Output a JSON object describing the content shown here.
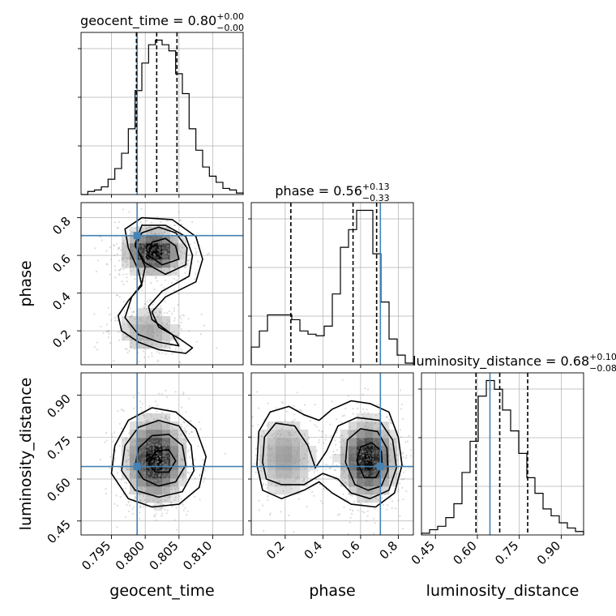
{
  "chart_data": {
    "type": "corner",
    "parameters": [
      "geocent_time",
      "phase",
      "luminosity_distance"
    ],
    "truths": {
      "geocent_time": 0.7988,
      "phase": 0.705,
      "luminosity_distance": 0.645
    },
    "colors": {
      "truth": "#4682b4",
      "hist": "#000000",
      "grid": "#b0b0b0",
      "scatter": "#9a9a9a"
    },
    "grid": true,
    "diagonal": [
      {
        "param": "geocent_time",
        "title_label": "geocent_time = 0.80",
        "title_sup": "+0.00",
        "title_sub": "−0.00",
        "range": [
          0.7905,
          0.8145
        ],
        "quantiles": [
          0.7987,
          0.8017,
          0.8047
        ],
        "counts": [
          0,
          2,
          3,
          5,
          10,
          17,
          27,
          43,
          68,
          86,
          98,
          101,
          98,
          94,
          79,
          66,
          43,
          29,
          18,
          12,
          8,
          4,
          3,
          1
        ]
      },
      {
        "param": "phase",
        "title_label": "phase = 0.56",
        "title_sup": "+0.13",
        "title_sub": "−0.33",
        "range": [
          0.02,
          0.88
        ],
        "quantiles": [
          0.23,
          0.56,
          0.685
        ],
        "counts": [
          11,
          21,
          31,
          31,
          31,
          28,
          21,
          19,
          18,
          24,
          44,
          73,
          84,
          96,
          96,
          69,
          39,
          16,
          6,
          1
        ]
      },
      {
        "param": "luminosity_distance",
        "title_label": "luminosity_distance = 0.68",
        "title_sup": "+0.10",
        "title_sub": "−0.08",
        "range": [
          0.4,
          0.98
        ],
        "quantiles": [
          0.595,
          0.68,
          0.78
        ],
        "counts": [
          1,
          3,
          5,
          10,
          18,
          36,
          54,
          80,
          89,
          84,
          72,
          60,
          47,
          33,
          24,
          15,
          11,
          7,
          4,
          2
        ]
      }
    ],
    "axes": {
      "geocent_time": {
        "label": "geocent_time",
        "ticks": [
          0.795,
          0.8,
          0.805,
          0.81
        ],
        "tick_labels": [
          "0.795",
          "0.800",
          "0.805",
          "0.810"
        ]
      },
      "phase": {
        "label": "phase",
        "ticks": [
          0.2,
          0.4,
          0.6,
          0.8
        ],
        "tick_labels": [
          "0.2",
          "0.4",
          "0.6",
          "0.8"
        ]
      },
      "luminosity_distance": {
        "label": "luminosity_distance",
        "ticks": [
          0.45,
          0.6,
          0.75,
          0.9
        ],
        "tick_labels": [
          "0.45",
          "0.60",
          "0.75",
          "0.90"
        ]
      }
    },
    "pairs": [
      {
        "x": "geocent_time",
        "y": "phase",
        "modes": [
          {
            "cx": 0.8012,
            "cy": 0.62,
            "sx": 0.0022,
            "sy": 0.06,
            "w": 0.72
          },
          {
            "cx": 0.8005,
            "cy": 0.2,
            "sx": 0.0026,
            "sy": 0.07,
            "w": 0.28
          }
        ],
        "contours": [
          [
            [
              0.796,
              0.28
            ],
            [
              0.7965,
              0.2
            ],
            [
              0.799,
              0.14
            ],
            [
              0.802,
              0.1
            ],
            [
              0.806,
              0.08
            ],
            [
              0.807,
              0.11
            ],
            [
              0.805,
              0.16
            ],
            [
              0.802,
              0.22
            ],
            [
              0.801,
              0.3
            ],
            [
              0.803,
              0.38
            ],
            [
              0.8075,
              0.46
            ],
            [
              0.8085,
              0.58
            ],
            [
              0.8075,
              0.7
            ],
            [
              0.804,
              0.79
            ],
            [
              0.7995,
              0.8
            ],
            [
              0.797,
              0.74
            ],
            [
              0.7975,
              0.64
            ],
            [
              0.799,
              0.52
            ],
            [
              0.7995,
              0.44
            ],
            [
              0.7975,
              0.36
            ]
          ],
          [
            [
              0.797,
              0.27
            ],
            [
              0.799,
              0.18
            ],
            [
              0.802,
              0.14
            ],
            [
              0.805,
              0.12
            ],
            [
              0.804,
              0.18
            ],
            [
              0.801,
              0.26
            ],
            [
              0.8005,
              0.33
            ],
            [
              0.8025,
              0.41
            ],
            [
              0.8065,
              0.49
            ],
            [
              0.807,
              0.6
            ],
            [
              0.806,
              0.7
            ],
            [
              0.803,
              0.76
            ],
            [
              0.7995,
              0.76
            ],
            [
              0.7985,
              0.66
            ],
            [
              0.8,
              0.54
            ],
            [
              0.7995,
              0.45
            ],
            [
              0.798,
              0.38
            ]
          ],
          [
            [
              0.7995,
              0.72
            ],
            [
              0.7985,
              0.65
            ],
            [
              0.8,
              0.56
            ],
            [
              0.803,
              0.5
            ],
            [
              0.806,
              0.55
            ],
            [
              0.8062,
              0.64
            ],
            [
              0.8045,
              0.72
            ],
            [
              0.802,
              0.75
            ]
          ],
          [
            [
              0.801,
              0.67
            ],
            [
              0.8005,
              0.6
            ],
            [
              0.8025,
              0.55
            ],
            [
              0.805,
              0.58
            ],
            [
              0.8045,
              0.65
            ],
            [
              0.803,
              0.69
            ]
          ]
        ]
      },
      {
        "x": "geocent_time",
        "y": "luminosity_distance",
        "modes": [
          {
            "cx": 0.8015,
            "cy": 0.67,
            "sx": 0.0022,
            "sy": 0.075,
            "w": 1
          }
        ],
        "contours": [
          [
            [
              0.795,
              0.62
            ],
            [
              0.7955,
              0.72
            ],
            [
              0.7975,
              0.81
            ],
            [
              0.801,
              0.855
            ],
            [
              0.8045,
              0.84
            ],
            [
              0.8075,
              0.78
            ],
            [
              0.809,
              0.68
            ],
            [
              0.808,
              0.57
            ],
            [
              0.805,
              0.51
            ],
            [
              0.801,
              0.5
            ],
            [
              0.7975,
              0.53
            ]
          ],
          [
            [
              0.7965,
              0.63
            ],
            [
              0.797,
              0.72
            ],
            [
              0.799,
              0.785
            ],
            [
              0.802,
              0.81
            ],
            [
              0.805,
              0.79
            ],
            [
              0.8068,
              0.72
            ],
            [
              0.8072,
              0.63
            ],
            [
              0.8055,
              0.555
            ],
            [
              0.802,
              0.535
            ],
            [
              0.7985,
              0.56
            ]
          ],
          [
            [
              0.7985,
              0.645
            ],
            [
              0.799,
              0.71
            ],
            [
              0.801,
              0.755
            ],
            [
              0.8035,
              0.76
            ],
            [
              0.8055,
              0.72
            ],
            [
              0.806,
              0.65
            ],
            [
              0.8045,
              0.59
            ],
            [
              0.802,
              0.575
            ],
            [
              0.7997,
              0.6
            ]
          ],
          [
            [
              0.8005,
              0.655
            ],
            [
              0.8015,
              0.7
            ],
            [
              0.8035,
              0.705
            ],
            [
              0.8045,
              0.665
            ],
            [
              0.8035,
              0.625
            ],
            [
              0.8015,
              0.625
            ]
          ]
        ]
      },
      {
        "x": "phase",
        "y": "luminosity_distance",
        "modes": [
          {
            "cx": 0.64,
            "cy": 0.67,
            "sx": 0.075,
            "sy": 0.07,
            "w": 0.68
          },
          {
            "cx": 0.2,
            "cy": 0.68,
            "sx": 0.09,
            "sy": 0.08,
            "w": 0.32
          }
        ],
        "contours": [
          [
            [
              0.05,
              0.65
            ],
            [
              0.06,
              0.77
            ],
            [
              0.12,
              0.84
            ],
            [
              0.22,
              0.86
            ],
            [
              0.3,
              0.83
            ],
            [
              0.38,
              0.81
            ],
            [
              0.45,
              0.85
            ],
            [
              0.55,
              0.88
            ],
            [
              0.65,
              0.87
            ],
            [
              0.75,
              0.84
            ],
            [
              0.8,
              0.75
            ],
            [
              0.82,
              0.65
            ],
            [
              0.78,
              0.55
            ],
            [
              0.68,
              0.5
            ],
            [
              0.55,
              0.51
            ],
            [
              0.45,
              0.55
            ],
            [
              0.38,
              0.59
            ],
            [
              0.3,
              0.56
            ],
            [
              0.18,
              0.53
            ],
            [
              0.08,
              0.56
            ]
          ],
          [
            [
              0.08,
              0.66
            ],
            [
              0.09,
              0.75
            ],
            [
              0.15,
              0.8
            ],
            [
              0.25,
              0.79
            ],
            [
              0.32,
              0.72
            ],
            [
              0.36,
              0.64
            ],
            [
              0.42,
              0.7
            ],
            [
              0.48,
              0.79
            ],
            [
              0.58,
              0.82
            ],
            [
              0.7,
              0.81
            ],
            [
              0.77,
              0.74
            ],
            [
              0.79,
              0.64
            ],
            [
              0.75,
              0.56
            ],
            [
              0.65,
              0.53
            ],
            [
              0.55,
              0.55
            ],
            [
              0.48,
              0.6
            ],
            [
              0.4,
              0.62
            ],
            [
              0.3,
              0.58
            ],
            [
              0.18,
              0.58
            ],
            [
              0.1,
              0.6
            ]
          ],
          [
            [
              0.52,
              0.66
            ],
            [
              0.53,
              0.74
            ],
            [
              0.6,
              0.78
            ],
            [
              0.69,
              0.77
            ],
            [
              0.74,
              0.71
            ],
            [
              0.745,
              0.63
            ],
            [
              0.71,
              0.575
            ],
            [
              0.64,
              0.56
            ],
            [
              0.57,
              0.58
            ]
          ],
          [
            [
              0.58,
              0.665
            ],
            [
              0.6,
              0.715
            ],
            [
              0.66,
              0.73
            ],
            [
              0.71,
              0.7
            ],
            [
              0.715,
              0.645
            ],
            [
              0.68,
              0.605
            ],
            [
              0.62,
              0.605
            ]
          ]
        ]
      }
    ]
  }
}
